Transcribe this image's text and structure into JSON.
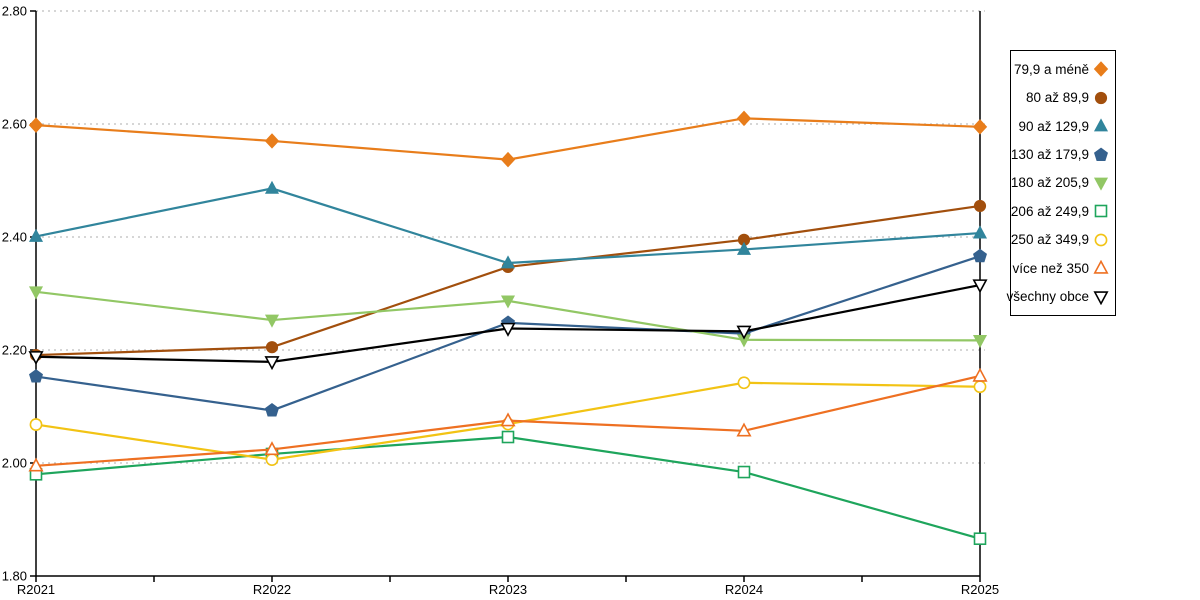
{
  "chart_data": {
    "type": "line",
    "title": "",
    "xlabel": "",
    "ylabel": "",
    "categories": [
      "R2021",
      "R2022",
      "R2023",
      "R2024",
      "R2025"
    ],
    "ylim": [
      1.8,
      2.8
    ],
    "ytick_labels": [
      "1.80",
      "2.00",
      "2.20",
      "2.40",
      "2.60",
      "2.80"
    ],
    "ytick_values": [
      1.8,
      2.0,
      2.2,
      2.4,
      2.6,
      2.8
    ],
    "grid": "horizontal-dotted",
    "gridline_color": "#bdbdbd",
    "axis_color": "#000000",
    "legend_position": "right",
    "series": [
      {
        "name": "79,9 a méně",
        "marker": "diamond",
        "marker_fill": "filled",
        "color": "#E87D1B",
        "values": [
          2.598,
          2.57,
          2.537,
          2.61,
          2.595
        ]
      },
      {
        "name": "80 až 89,9",
        "marker": "circle",
        "marker_fill": "filled",
        "color": "#A24F0D",
        "values": [
          2.191,
          2.205,
          2.347,
          2.395,
          2.455
        ]
      },
      {
        "name": "90 až 129,9",
        "marker": "triangle-up",
        "marker_fill": "filled",
        "color": "#31859C",
        "values": [
          2.401,
          2.486,
          2.354,
          2.378,
          2.407
        ]
      },
      {
        "name": "130 až 179,9",
        "marker": "pentagon",
        "marker_fill": "filled",
        "color": "#35618E",
        "values": [
          2.153,
          2.093,
          2.248,
          2.229,
          2.366
        ]
      },
      {
        "name": "180 až 205,9",
        "marker": "triangle-down",
        "marker_fill": "filled",
        "color": "#92C765",
        "values": [
          2.303,
          2.253,
          2.287,
          2.218,
          2.217
        ]
      },
      {
        "name": "206 až 249,9",
        "marker": "square",
        "marker_fill": "open",
        "color": "#1EA55C",
        "values": [
          1.98,
          2.016,
          2.046,
          1.984,
          1.866
        ]
      },
      {
        "name": "250 až 349,9",
        "marker": "circle",
        "marker_fill": "open",
        "color": "#F2C314",
        "values": [
          2.068,
          2.006,
          2.069,
          2.142,
          2.135
        ]
      },
      {
        "name": "více než 350",
        "marker": "triangle-up",
        "marker_fill": "open",
        "color": "#EE7022",
        "values": [
          1.995,
          2.024,
          2.075,
          2.057,
          2.154
        ]
      },
      {
        "name": "všechny obce",
        "marker": "triangle-down",
        "marker_fill": "open",
        "color": "#000000",
        "values": [
          2.188,
          2.179,
          2.238,
          2.233,
          2.315
        ]
      }
    ]
  }
}
